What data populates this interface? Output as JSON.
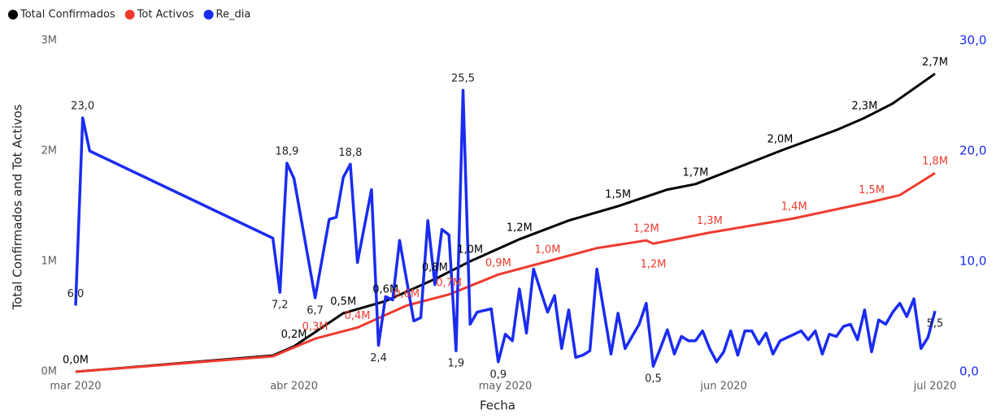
{
  "chart_data": {
    "type": "line",
    "x_label": "Fecha",
    "y_label": "Total Confirmados and Tot Activos",
    "xlim": [
      0,
      122
    ],
    "xticks": [
      {
        "value": 0,
        "label": "mar 2020"
      },
      {
        "value": 31,
        "label": "abr 2020"
      },
      {
        "value": 61,
        "label": "may 2020"
      },
      {
        "value": 92,
        "label": "jun 2020"
      },
      {
        "value": 122,
        "label": "jul 2020"
      }
    ],
    "ylim": [
      0,
      3000000
    ],
    "yticks": [
      {
        "value": 0,
        "label": "0M"
      },
      {
        "value": 1000000,
        "label": "1M"
      },
      {
        "value": 2000000,
        "label": "2M"
      },
      {
        "value": 3000000,
        "label": "3M"
      }
    ],
    "y2lim": [
      0,
      30
    ],
    "y2ticks": [
      {
        "value": 0,
        "label": "0,0"
      },
      {
        "value": 10,
        "label": "10,0"
      },
      {
        "value": 20,
        "label": "20,0"
      },
      {
        "value": 30,
        "label": "30,0"
      }
    ],
    "y2_color": "#1a2cf0",
    "legend": "top-left",
    "series": [
      {
        "name": "Total Confirmados",
        "color": "#000000",
        "x": [
          0,
          28,
          31,
          38,
          44,
          51,
          56,
          63,
          70,
          77,
          84,
          88,
          96,
          100,
          108,
          112,
          116,
          122
        ],
        "values": [
          0,
          147000,
          230000,
          530000,
          640000,
          840000,
          1000000,
          1200000,
          1370000,
          1500000,
          1650000,
          1700000,
          1900000,
          2000000,
          2190000,
          2300000,
          2430000,
          2700000
        ],
        "value_labels": [
          "0,0M",
          null,
          "0,2M",
          "0,5M",
          "0,6M",
          "0,8M",
          "1,0M",
          "1,2M",
          null,
          "1,5M",
          null,
          "1,7M",
          null,
          "2,0M",
          null,
          "2,3M",
          null,
          "2,7M"
        ]
      },
      {
        "name": "Tot Activos",
        "color": "#f03a2e",
        "x": [
          0,
          28,
          34,
          40,
          47,
          53,
          60,
          67,
          74,
          81,
          82,
          90,
          102,
          113,
          117,
          122
        ],
        "values": [
          0,
          140000,
          300000,
          400000,
          600000,
          700000,
          880000,
          1000000,
          1120000,
          1190000,
          1160000,
          1260000,
          1390000,
          1540000,
          1600000,
          1800000
        ],
        "value_labels": [
          null,
          null,
          "0,3M",
          "0,4M",
          "0,6M",
          "0,7M",
          "0,9M",
          "1,0M",
          null,
          "1,2M",
          "1,2M",
          "1,3M",
          "1,4M",
          "1,5M",
          null,
          "1,8M"
        ]
      },
      {
        "name": "Re_dia",
        "color": "#1a2cf0",
        "axis": "y2",
        "x": [
          0,
          1,
          2,
          28,
          29,
          30,
          31,
          34,
          36,
          37,
          38,
          39,
          40,
          42,
          43,
          44,
          45,
          46,
          48,
          49,
          50,
          51,
          52,
          53,
          54,
          55,
          56,
          57,
          59,
          60,
          61,
          62,
          63,
          64,
          65,
          67,
          68,
          69,
          70,
          71,
          72,
          73,
          74,
          76,
          77,
          78,
          80,
          81,
          82,
          83,
          84,
          85,
          86,
          87,
          88,
          89,
          90,
          91,
          92,
          93,
          94,
          95,
          96,
          97,
          98,
          99,
          100,
          101,
          102,
          103,
          104,
          105,
          106,
          107,
          108,
          109,
          110,
          111,
          112,
          113,
          114,
          115,
          116,
          117,
          118,
          119,
          120,
          121,
          122
        ],
        "values": [
          6.0,
          23.0,
          20.0,
          12.1,
          7.2,
          18.9,
          17.5,
          6.7,
          13.8,
          14.0,
          17.6,
          18.8,
          9.9,
          16.5,
          2.4,
          6.8,
          6.5,
          11.9,
          4.6,
          4.9,
          13.7,
          7.9,
          12.9,
          12.4,
          1.9,
          25.5,
          4.3,
          5.4,
          5.7,
          0.9,
          3.4,
          2.8,
          7.5,
          3.5,
          9.3,
          5.4,
          6.9,
          2.1,
          5.6,
          1.3,
          1.5,
          1.9,
          9.3,
          1.6,
          5.3,
          2.1,
          4.3,
          6.2,
          0.5,
          2.1,
          3.8,
          1.6,
          3.2,
          2.8,
          2.8,
          3.7,
          2.1,
          0.9,
          1.8,
          3.7,
          1.5,
          3.7,
          3.7,
          2.5,
          3.5,
          1.6,
          2.8,
          3.1,
          3.4,
          3.7,
          2.9,
          3.7,
          1.6,
          3.4,
          3.2,
          4.1,
          4.3,
          2.9,
          5.6,
          1.8,
          4.7,
          4.3,
          5.4,
          6.2,
          5.0,
          6.6,
          2.1,
          3.1,
          5.5
        ],
        "value_labels": [
          "6,0",
          "23,0",
          null,
          null,
          "7,2",
          "18,9",
          null,
          "6,7",
          null,
          null,
          null,
          "18,8",
          null,
          null,
          "2,4",
          null,
          null,
          null,
          null,
          null,
          null,
          null,
          null,
          null,
          "1,9",
          "25,5",
          null,
          null,
          null,
          "0,9",
          null,
          null,
          null,
          null,
          null,
          null,
          null,
          null,
          null,
          null,
          null,
          null,
          null,
          null,
          null,
          null,
          null,
          null,
          "0,5",
          null,
          null,
          null,
          null,
          null,
          null,
          null,
          null,
          null,
          null,
          null,
          null,
          null,
          null,
          null,
          null,
          null,
          null,
          null,
          null,
          null,
          null,
          null,
          null,
          null,
          null,
          null,
          null,
          null,
          null,
          null,
          null,
          null,
          null,
          null,
          null,
          null,
          null,
          null,
          "5,5"
        ]
      }
    ]
  }
}
